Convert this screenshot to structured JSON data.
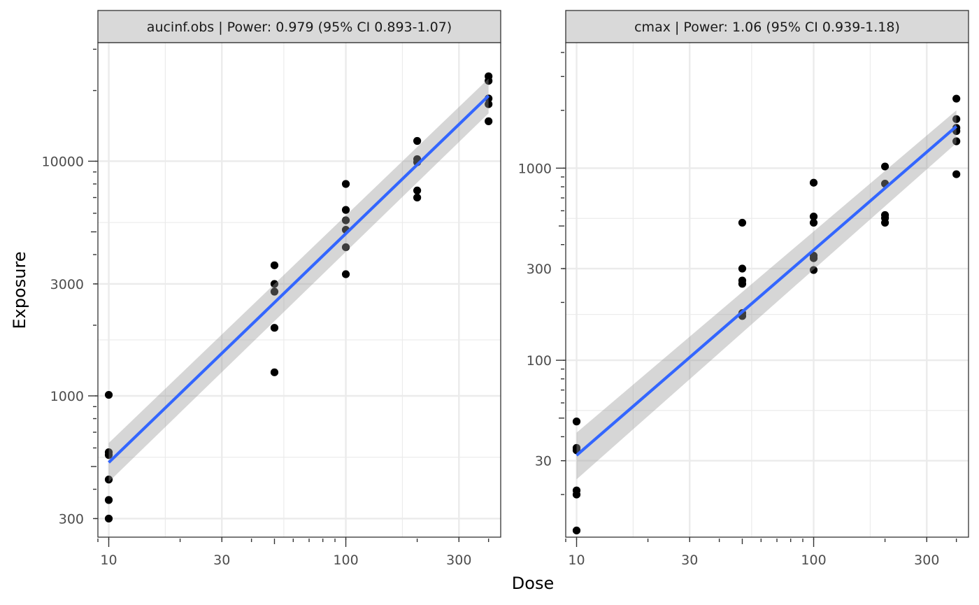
{
  "figure": {
    "xlabel": "Dose",
    "ylabel": "Exposure"
  },
  "colors": {
    "fit_line": "#3366ff",
    "ribbon": "#999999",
    "points": "#000000",
    "strip_bg": "#d9d9d9",
    "grid": "#ebebeb",
    "panel_border": "#333333"
  },
  "chart_data": [
    {
      "type": "scatter",
      "title": "aucinf.obs | Power: 0.979 (95% CI 0.893-1.07)",
      "xscale": "log10",
      "yscale": "log10",
      "xlim": [
        9,
        450
      ],
      "ylim": [
        250,
        32000
      ],
      "xticks": [
        10,
        30,
        100,
        300
      ],
      "xtick_labels": [
        "10",
        "30",
        "100",
        "300"
      ],
      "yticks": [
        300,
        1000,
        3000,
        10000
      ],
      "ytick_labels": [
        "300",
        "1000",
        "3000",
        "10000"
      ],
      "grid": true,
      "points": [
        {
          "x": 10,
          "y": 1010
        },
        {
          "x": 10,
          "y": 575
        },
        {
          "x": 10,
          "y": 560
        },
        {
          "x": 10,
          "y": 440
        },
        {
          "x": 10,
          "y": 360
        },
        {
          "x": 10,
          "y": 300
        },
        {
          "x": 50,
          "y": 3600
        },
        {
          "x": 50,
          "y": 3000
        },
        {
          "x": 50,
          "y": 2780
        },
        {
          "x": 50,
          "y": 1950
        },
        {
          "x": 50,
          "y": 1260
        },
        {
          "x": 100,
          "y": 8000
        },
        {
          "x": 100,
          "y": 6200
        },
        {
          "x": 100,
          "y": 5600
        },
        {
          "x": 100,
          "y": 5100
        },
        {
          "x": 100,
          "y": 4300
        },
        {
          "x": 100,
          "y": 3300
        },
        {
          "x": 200,
          "y": 12200
        },
        {
          "x": 200,
          "y": 10200
        },
        {
          "x": 200,
          "y": 9900
        },
        {
          "x": 200,
          "y": 7500
        },
        {
          "x": 200,
          "y": 7000
        },
        {
          "x": 400,
          "y": 23000
        },
        {
          "x": 400,
          "y": 22000
        },
        {
          "x": 400,
          "y": 18500
        },
        {
          "x": 400,
          "y": 17500
        },
        {
          "x": 400,
          "y": 14800
        }
      ],
      "fit": {
        "x": [
          10,
          400
        ],
        "y": [
          520,
          19000
        ],
        "ci_lower": [
          430,
          16000
        ],
        "ci_upper": [
          630,
          22500
        ]
      }
    },
    {
      "type": "scatter",
      "title": "cmax | Power: 1.06 (95% CI 0.939-1.18)",
      "xscale": "log10",
      "yscale": "log10",
      "xlim": [
        9,
        450
      ],
      "ylim": [
        12,
        4500
      ],
      "xticks": [
        10,
        30,
        100,
        300
      ],
      "xtick_labels": [
        "10",
        "30",
        "100",
        "300"
      ],
      "yticks": [
        30,
        100,
        300,
        1000
      ],
      "ytick_labels": [
        "30",
        "100",
        "300",
        "1000"
      ],
      "grid": true,
      "points": [
        {
          "x": 10,
          "y": 48
        },
        {
          "x": 10,
          "y": 35
        },
        {
          "x": 10,
          "y": 34
        },
        {
          "x": 10,
          "y": 21
        },
        {
          "x": 10,
          "y": 20
        },
        {
          "x": 10,
          "y": 13
        },
        {
          "x": 50,
          "y": 520
        },
        {
          "x": 50,
          "y": 300
        },
        {
          "x": 50,
          "y": 260
        },
        {
          "x": 50,
          "y": 250
        },
        {
          "x": 50,
          "y": 176
        },
        {
          "x": 50,
          "y": 170
        },
        {
          "x": 100,
          "y": 840
        },
        {
          "x": 100,
          "y": 560
        },
        {
          "x": 100,
          "y": 520
        },
        {
          "x": 100,
          "y": 350
        },
        {
          "x": 100,
          "y": 340
        },
        {
          "x": 100,
          "y": 295
        },
        {
          "x": 200,
          "y": 1020
        },
        {
          "x": 200,
          "y": 830
        },
        {
          "x": 200,
          "y": 570
        },
        {
          "x": 200,
          "y": 550
        },
        {
          "x": 200,
          "y": 520
        },
        {
          "x": 400,
          "y": 2300
        },
        {
          "x": 400,
          "y": 1800
        },
        {
          "x": 400,
          "y": 1620
        },
        {
          "x": 400,
          "y": 1560
        },
        {
          "x": 400,
          "y": 1380
        },
        {
          "x": 400,
          "y": 930
        }
      ],
      "fit": {
        "x": [
          10,
          400
        ],
        "y": [
          32,
          1650
        ],
        "ci_lower": [
          24,
          1350
        ],
        "ci_upper": [
          42,
          2000
        ]
      }
    }
  ]
}
